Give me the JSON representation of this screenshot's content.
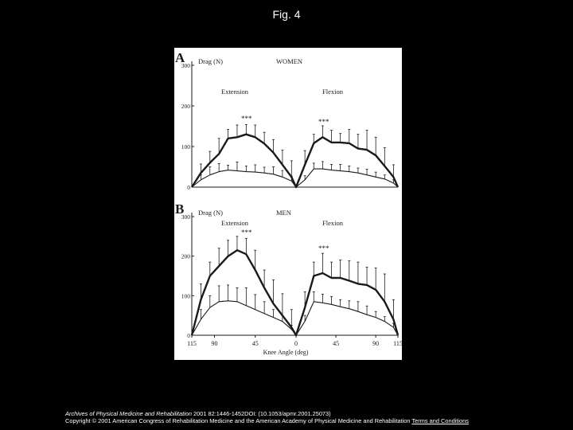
{
  "figure_title": "Fig. 4",
  "footer": {
    "journal": "Archives of Physical Medicine and Rehabilitation",
    "citation": " 2001 82:1446-1452DOI: (10.1053/apmr.2001.25073)",
    "copyright": "Copyright © 2001 American Congress of Rehabilitation Medicine and the American Academy of Physical Medicine and Rehabilitation",
    "terms_link": "Terms and Conditions"
  },
  "colors": {
    "background": "#000000",
    "figure_bg": "#ffffff",
    "ink": "#1a1a1a"
  },
  "chart_data": [
    {
      "type": "line",
      "panel_label": "A",
      "title": "WOMEN",
      "ylabel": "Drag (N)",
      "ylim": [
        0,
        300
      ],
      "yticks": [
        0,
        100,
        200,
        300
      ],
      "phase_labels": [
        "Extension",
        "Flexion"
      ],
      "significance": [
        "***",
        "***"
      ],
      "x": [
        115,
        105,
        95,
        85,
        75,
        65,
        55,
        45,
        35,
        25,
        15,
        5,
        0,
        10,
        20,
        30,
        40,
        50,
        60,
        70,
        80,
        90,
        100,
        110,
        115
      ],
      "series": [
        {
          "values": [
            0,
            35,
            60,
            82,
            120,
            123,
            130,
            123,
            107,
            85,
            55,
            25,
            0,
            55,
            108,
            123,
            110,
            110,
            108,
            95,
            92,
            78,
            52,
            25,
            0
          ],
          "error": [
            0,
            22,
            28,
            38,
            22,
            30,
            24,
            30,
            28,
            32,
            36,
            40,
            0,
            35,
            22,
            28,
            30,
            22,
            34,
            35,
            48,
            45,
            45,
            30,
            0
          ]
        },
        {
          "values": [
            0,
            18,
            30,
            38,
            42,
            40,
            38,
            37,
            35,
            32,
            25,
            15,
            0,
            18,
            45,
            45,
            42,
            40,
            38,
            35,
            30,
            25,
            20,
            10,
            0
          ],
          "error": [
            0,
            12,
            20,
            20,
            12,
            22,
            14,
            18,
            14,
            18,
            16,
            12,
            0,
            10,
            14,
            18,
            14,
            16,
            14,
            12,
            14,
            12,
            10,
            8,
            0
          ]
        }
      ]
    },
    {
      "type": "line",
      "panel_label": "B",
      "title": "MEN",
      "ylabel": "Drag (N)",
      "xlabel": "Knee Angle (deg)",
      "ylim": [
        0,
        300
      ],
      "yticks": [
        0,
        100,
        200,
        300
      ],
      "xtick_labels": [
        "115",
        "90",
        "45",
        "0",
        "45",
        "90",
        "115"
      ],
      "xtick_values": [
        115,
        90,
        45,
        0,
        45,
        90,
        115
      ],
      "phase_labels": [
        "Extension",
        "Flexion"
      ],
      "significance": [
        "***",
        "***"
      ],
      "x": [
        115,
        105,
        95,
        85,
        75,
        65,
        55,
        45,
        35,
        25,
        15,
        5,
        0,
        10,
        20,
        30,
        40,
        50,
        60,
        70,
        80,
        90,
        100,
        110,
        115
      ],
      "series": [
        {
          "values": [
            0,
            90,
            150,
            175,
            200,
            215,
            205,
            165,
            120,
            80,
            50,
            20,
            0,
            70,
            150,
            157,
            145,
            145,
            138,
            130,
            127,
            115,
            85,
            40,
            0
          ],
          "error": [
            0,
            40,
            35,
            45,
            40,
            35,
            40,
            50,
            45,
            60,
            55,
            45,
            0,
            40,
            35,
            50,
            40,
            45,
            50,
            55,
            45,
            55,
            70,
            50,
            0
          ]
        },
        {
          "values": [
            0,
            40,
            70,
            85,
            87,
            85,
            75,
            65,
            55,
            45,
            35,
            15,
            0,
            35,
            85,
            82,
            78,
            72,
            67,
            60,
            52,
            45,
            35,
            20,
            0
          ],
          "error": [
            0,
            25,
            30,
            40,
            40,
            35,
            45,
            38,
            30,
            20,
            15,
            10,
            0,
            15,
            25,
            22,
            20,
            18,
            20,
            25,
            22,
            15,
            12,
            10,
            0
          ]
        }
      ]
    }
  ]
}
